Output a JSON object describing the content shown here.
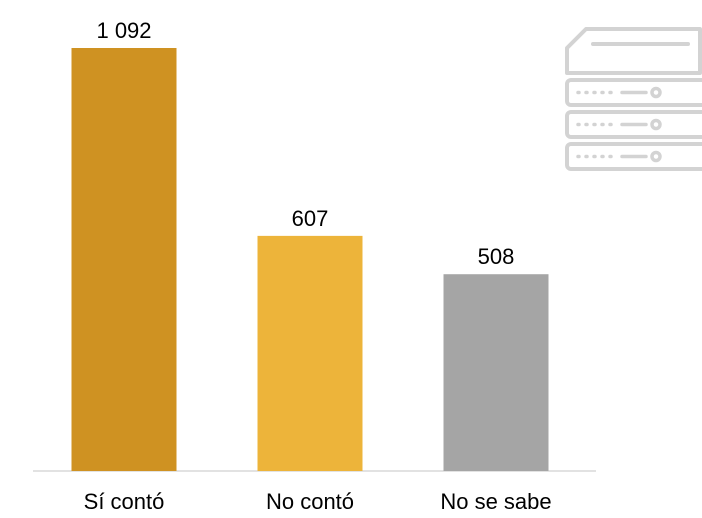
{
  "chart_data": {
    "type": "bar",
    "categories": [
      "Sí contó",
      "No contó",
      "No se sabe"
    ],
    "values": [
      1092,
      607,
      508
    ],
    "value_labels": [
      "1 092",
      "607",
      "508"
    ],
    "colors": [
      "#CF9222",
      "#EDB43A",
      "#A5A5A5"
    ],
    "ylim": [
      0,
      1092
    ],
    "grid": false,
    "title": "",
    "xlabel": "",
    "ylabel": ""
  },
  "decoration": {
    "icon": "server-rack-icon",
    "icon_color": "#D3D3D3"
  }
}
